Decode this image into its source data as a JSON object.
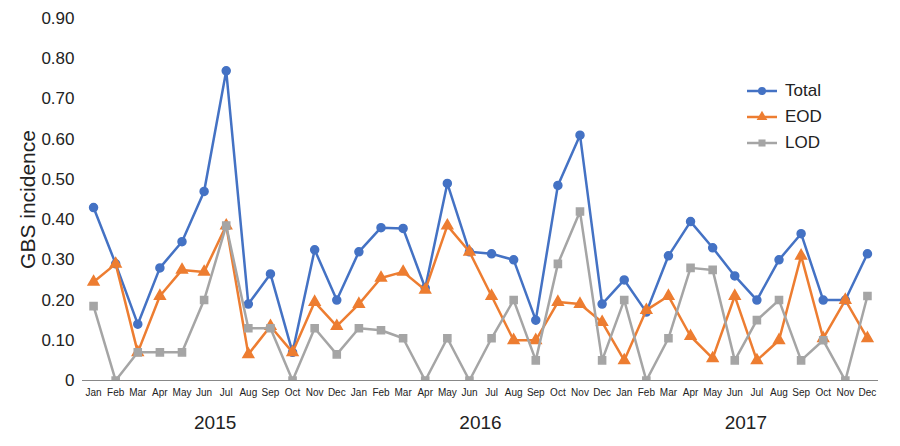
{
  "chart_data": {
    "type": "line",
    "y_label": "GBS incidence",
    "categories": [
      "Jan",
      "Feb",
      "Mar",
      "Apr",
      "May",
      "Jun",
      "Jul",
      "Aug",
      "Sep",
      "Oct",
      "Nov",
      "Dec",
      "Jan",
      "Feb",
      "Mar",
      "Apr",
      "May",
      "Jun",
      "Jul",
      "Aug",
      "Sep",
      "Oct",
      "Nov",
      "Dec",
      "Jan",
      "Feb",
      "Mar",
      "Apr",
      "May",
      "Jun",
      "Jul",
      "Aug",
      "Sep",
      "Oct",
      "Nov",
      "Dec"
    ],
    "year_labels": [
      "2015",
      "2016",
      "2017"
    ],
    "series": [
      {
        "name": "Total",
        "color": "#4472c4",
        "marker": "circle",
        "line_style": "solid",
        "values": [
          0.43,
          0.29,
          0.14,
          0.28,
          0.345,
          0.47,
          0.77,
          0.19,
          0.265,
          0.07,
          0.325,
          0.2,
          0.32,
          0.38,
          0.378,
          0.23,
          0.49,
          0.32,
          0.315,
          0.3,
          0.15,
          0.485,
          0.61,
          0.19,
          0.25,
          0.17,
          0.31,
          0.395,
          0.33,
          0.26,
          0.2,
          0.3,
          0.365,
          0.2,
          0.2,
          0.315
        ]
      },
      {
        "name": "EOD",
        "color": "#ed7d31",
        "marker": "triangle",
        "line_style": "solid",
        "values": [
          0.245,
          0.29,
          0.07,
          0.21,
          0.275,
          0.27,
          0.385,
          0.065,
          0.135,
          0.07,
          0.195,
          0.135,
          0.19,
          0.255,
          0.27,
          0.225,
          0.385,
          0.32,
          0.21,
          0.1,
          0.1,
          0.195,
          0.19,
          0.145,
          0.05,
          0.175,
          0.21,
          0.11,
          0.055,
          0.21,
          0.05,
          0.1,
          0.31,
          0.105,
          0.2,
          0.105
        ]
      },
      {
        "name": "LOD",
        "color": "#a5a5a5",
        "marker": "square",
        "line_style": "solid",
        "values": [
          0.185,
          0,
          0.07,
          0.07,
          0.07,
          0.2,
          0.385,
          0.13,
          0.13,
          0,
          0.13,
          0.065,
          0.13,
          0.125,
          0.105,
          0,
          0.105,
          0,
          0.105,
          0.2,
          0.05,
          0.29,
          0.42,
          0.05,
          0.2,
          0,
          0.105,
          0.28,
          0.275,
          0.05,
          0.15,
          0.2,
          0.05,
          0.1,
          0,
          0.21
        ]
      }
    ],
    "ylim": [
      0,
      0.9
    ],
    "yticks": [
      0,
      {
        "value": 0.1,
        "label": "0.10"
      },
      {
        "value": 0.2,
        "label": "0.20"
      },
      {
        "value": 0.3,
        "label": "0.30"
      },
      {
        "value": 0.4,
        "label": "0.40"
      },
      {
        "value": 0.5,
        "label": "0.50"
      },
      {
        "value": 0.6,
        "label": "0.60"
      },
      {
        "value": 0.7,
        "label": "0.70"
      },
      {
        "value": 0.8,
        "label": "0.80"
      },
      {
        "value": 0.9,
        "label": "0.90"
      }
    ],
    "grid": false,
    "legend": "right"
  }
}
